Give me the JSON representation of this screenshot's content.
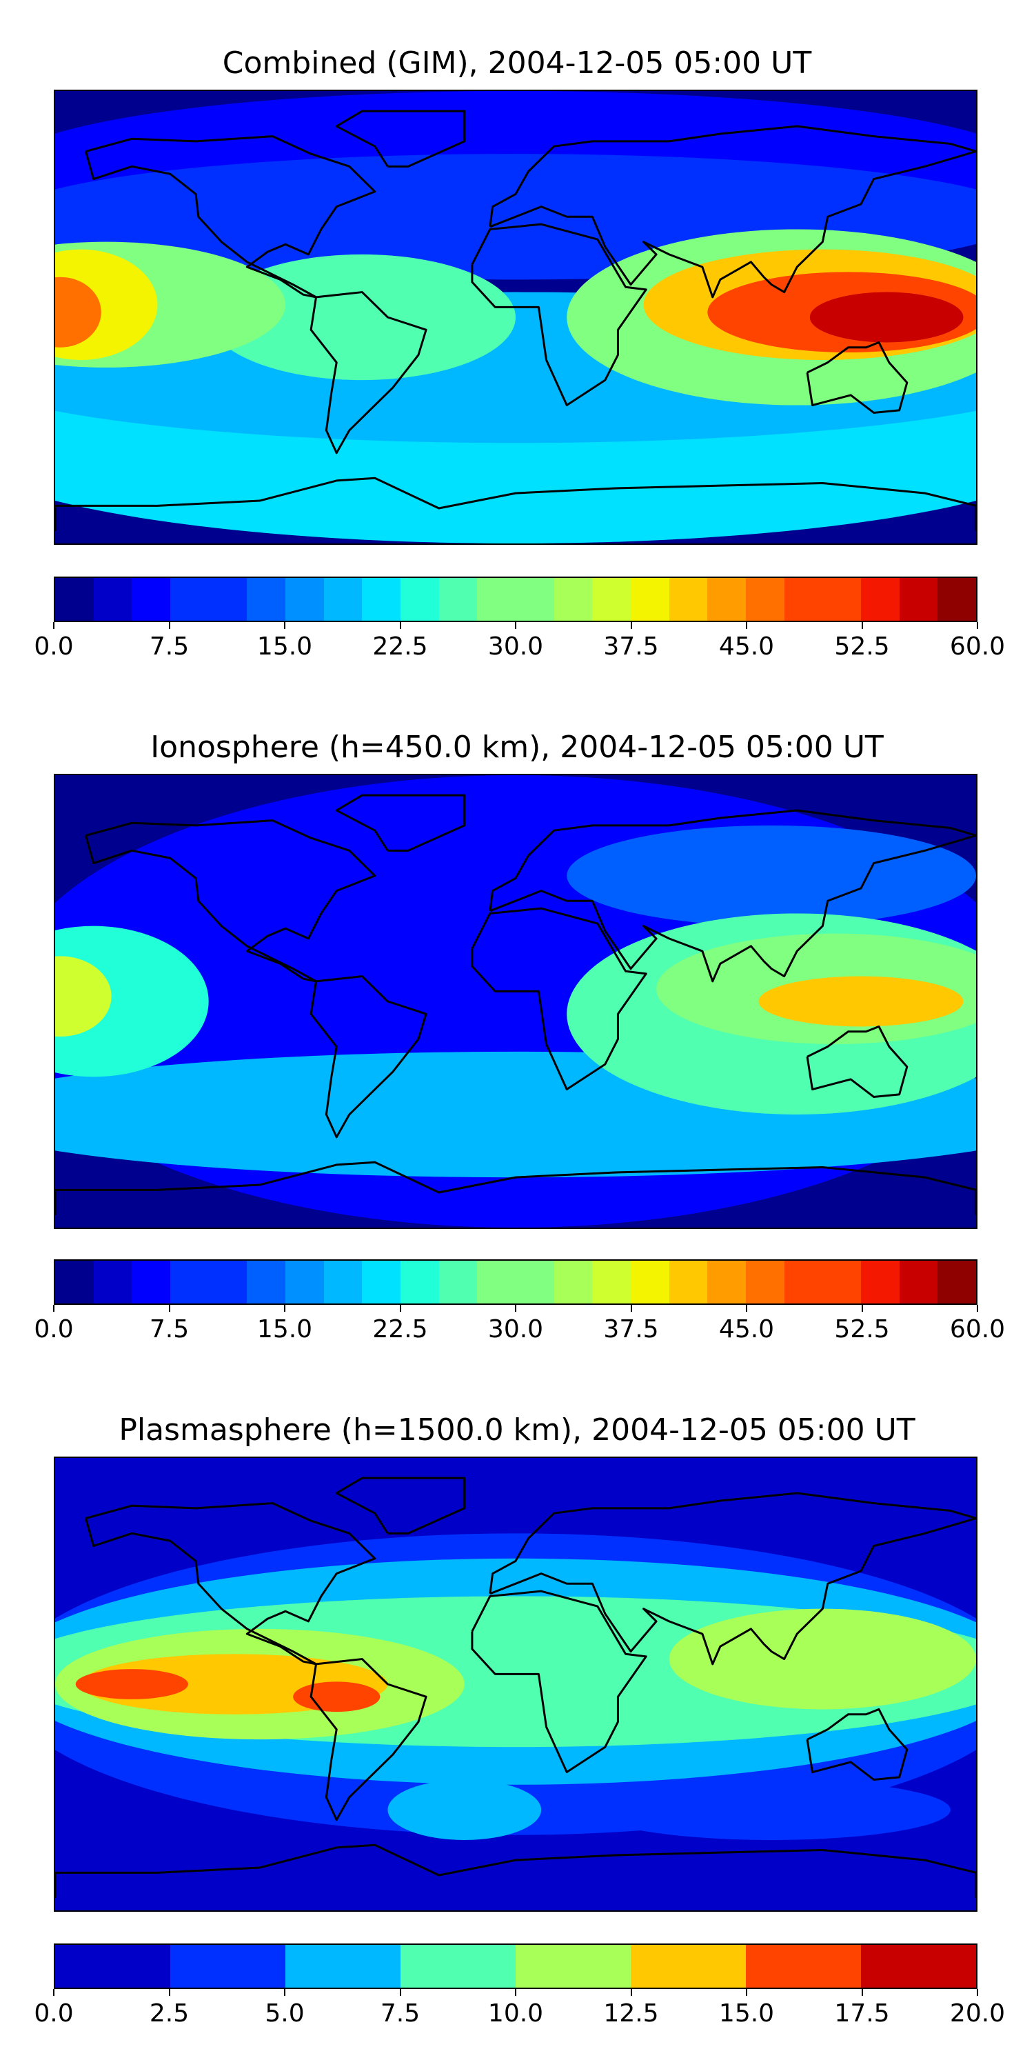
{
  "chart_data": [
    {
      "type": "heatmap",
      "title": "Combined (GIM), 2004-12-05 05:00 UT",
      "map": "global equirectangular world map with coastlines",
      "colorbar": {
        "orientation": "horizontal",
        "levels": [
          0,
          2.5,
          5,
          7.5,
          10,
          12.5,
          15,
          17.5,
          20,
          22.5,
          25,
          27.5,
          30,
          32.5,
          35,
          37.5,
          40,
          42.5,
          45,
          47.5,
          50,
          52.5,
          55,
          57.5,
          60
        ],
        "tick_labels": [
          "0.0",
          "7.5",
          "15.0",
          "22.5",
          "30.0",
          "37.5",
          "45.0",
          "52.5",
          "60.0"
        ],
        "range": [
          0,
          60
        ],
        "colormap": "jet"
      },
      "features": [
        {
          "region": "Indonesia / western Pacific",
          "approx_value": 55
        },
        {
          "region": "central Pacific (western edge of map)",
          "approx_value": 45
        },
        {
          "region": "Indian Ocean / southern Asia",
          "approx_value": 42
        },
        {
          "region": "South America / equatorial Atlantic",
          "approx_value": 25
        },
        {
          "region": "Southern Ocean / Antarctica",
          "approx_value": 22
        },
        {
          "region": "North America / Arctic",
          "approx_value": 7
        }
      ]
    },
    {
      "type": "heatmap",
      "title": "Ionosphere  (h=450.0 km), 2004-12-05 05:00 UT",
      "map": "global equirectangular world map with coastlines",
      "colorbar": {
        "orientation": "horizontal",
        "levels": [
          0,
          2.5,
          5,
          7.5,
          10,
          12.5,
          15,
          17.5,
          20,
          22.5,
          25,
          27.5,
          30,
          32.5,
          35,
          37.5,
          40,
          42.5,
          45,
          47.5,
          50,
          52.5,
          55,
          57.5,
          60
        ],
        "tick_labels": [
          "0.0",
          "7.5",
          "15.0",
          "22.5",
          "30.0",
          "37.5",
          "45.0",
          "52.5",
          "60.0"
        ],
        "range": [
          0,
          60
        ],
        "colormap": "jet"
      },
      "features": [
        {
          "region": "Indonesia / western Pacific",
          "approx_value": 40
        },
        {
          "region": "central Pacific (western edge of map)",
          "approx_value": 37
        },
        {
          "region": "Indian Ocean",
          "approx_value": 30
        },
        {
          "region": "Southern Ocean",
          "approx_value": 22
        },
        {
          "region": "Atlantic / Africa",
          "approx_value": 5
        },
        {
          "region": "North America / Arctic",
          "approx_value": 5
        }
      ]
    },
    {
      "type": "heatmap",
      "title": "Plasmasphere (h=1500.0 km), 2004-12-05 05:00 UT",
      "map": "global equirectangular world map with coastlines",
      "colorbar": {
        "orientation": "horizontal",
        "levels": [
          0,
          2.5,
          5,
          7.5,
          10,
          12.5,
          15,
          17.5,
          20
        ],
        "tick_labels": [
          "0.0",
          "2.5",
          "5.0",
          "7.5",
          "10.0",
          "12.5",
          "15.0",
          "17.5",
          "20.0"
        ],
        "range": [
          0,
          20
        ],
        "colormap": "jet"
      },
      "features": [
        {
          "region": "eastern Pacific",
          "approx_value": 16
        },
        {
          "region": "South America",
          "approx_value": 16
        },
        {
          "region": "tropical band (Pacific–Atlantic)",
          "approx_value": 13
        },
        {
          "region": "Africa / Indian Ocean / western Pacific",
          "approx_value": 10
        },
        {
          "region": "mid-latitudes",
          "approx_value": 6
        },
        {
          "region": "polar regions",
          "approx_value": 1
        }
      ]
    }
  ],
  "colors": {
    "jet": [
      "#00008f",
      "#0000c8",
      "#0000ff",
      "#0030ff",
      "#0060ff",
      "#0090ff",
      "#00b8ff",
      "#00e0ff",
      "#20ffd8",
      "#50ffb0",
      "#80ff80",
      "#a8ff58",
      "#d0ff30",
      "#f4f400",
      "#ffc800",
      "#ff9c00",
      "#ff7000",
      "#ff4400",
      "#f41800",
      "#c80000",
      "#8f0000"
    ]
  }
}
